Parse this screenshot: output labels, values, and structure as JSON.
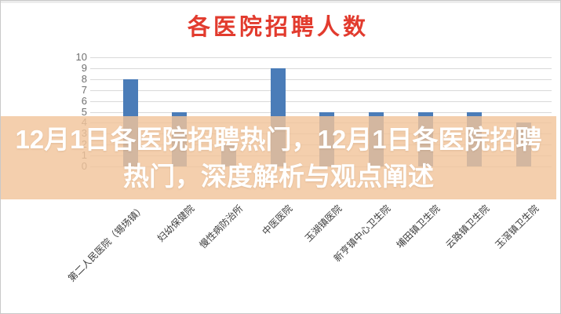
{
  "title": "各医院招聘人数",
  "overlay": {
    "line1": "12月1日各医院招聘热门，12月1日各医院招聘",
    "line2": "热门，深度解析与观点阐述",
    "background_color": "#f2c49b",
    "text_color": "#ffffff"
  },
  "chart_data": {
    "type": "bar",
    "title": "各医院招聘人数",
    "title_color": "#e23b2e",
    "categories": [
      "第二人民医院（锡场镇）",
      "妇幼保健院",
      "慢性病防治所",
      "中医医院",
      "玉湖镇医院",
      "新亨镇中心卫生院",
      "埔田镇卫生院",
      "云路镇卫生院",
      "玉滘镇卫生院"
    ],
    "values": [
      8,
      5,
      2,
      9,
      5,
      5,
      5,
      5,
      4
    ],
    "xlabel": "",
    "ylabel": "",
    "ylim": [
      0,
      10
    ],
    "yticks": [
      0,
      1,
      2,
      3,
      4,
      5,
      6,
      7,
      8,
      9,
      10
    ],
    "bar_color": "#4a7cb8",
    "gridline_color": "#d9d9d9",
    "grid": true,
    "legend": false,
    "x_label_rotation_deg": 45
  }
}
